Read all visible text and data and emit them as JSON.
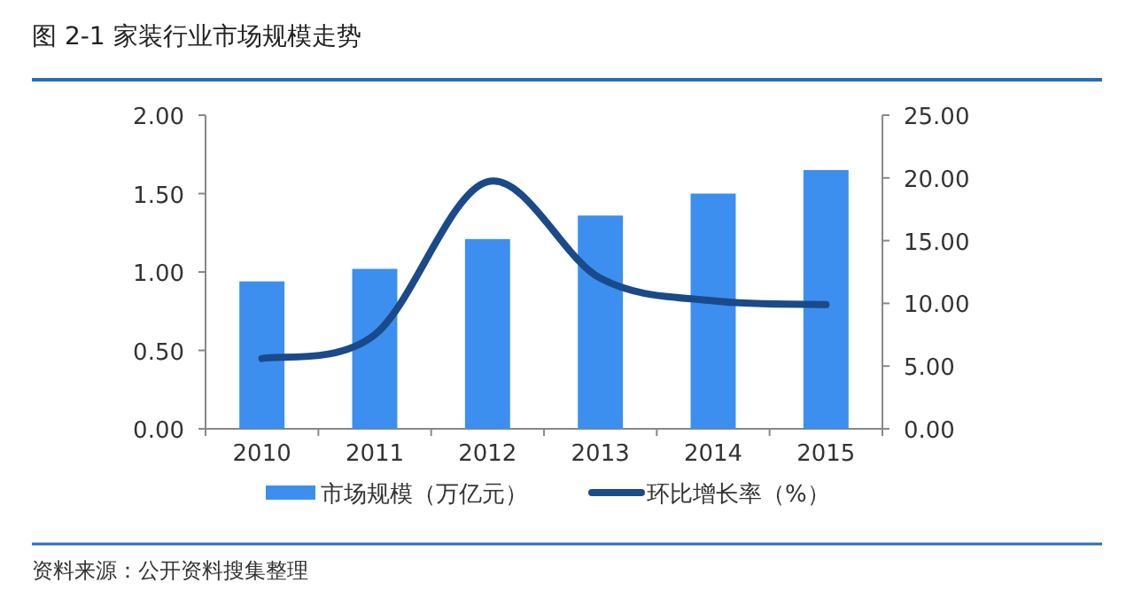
{
  "chart_data": {
    "type": "bar",
    "title": "图 2-1 家装行业市场规模走势",
    "categories": [
      "2010",
      "2011",
      "2012",
      "2013",
      "2014",
      "2015"
    ],
    "series": [
      {
        "name": "市场规模（万亿元）",
        "color": "#3c8fee",
        "values": [
          0.94,
          1.02,
          1.21,
          1.36,
          1.5,
          1.65
        ]
      },
      {
        "name": "环比增长率（%）",
        "type": "line",
        "axis": "y2",
        "color": "#1b4a8a",
        "values": [
          5.6,
          7.5,
          19.7,
          12.0,
          10.2,
          9.9
        ]
      }
    ],
    "ylim": [
      0,
      2
    ],
    "yticks": [
      {
        "value": 0,
        "label": "0.00"
      },
      {
        "value": 0.5,
        "label": "0.50"
      },
      {
        "value": 1,
        "label": "1.00"
      },
      {
        "value": 1.5,
        "label": "1.50"
      },
      {
        "value": 2,
        "label": "2.00"
      }
    ],
    "y2lim": [
      0,
      25
    ],
    "y2ticks": [
      {
        "value": 0,
        "label": "0.00"
      },
      {
        "value": 5,
        "label": "5.00"
      },
      {
        "value": 10,
        "label": "10.00"
      },
      {
        "value": 15,
        "label": "15.00"
      },
      {
        "value": 20,
        "label": "20.00"
      },
      {
        "value": 25,
        "label": "25.00"
      }
    ],
    "legend": "bottom",
    "annotations": [
      "资料来源：公开资料搜集整理"
    ]
  }
}
